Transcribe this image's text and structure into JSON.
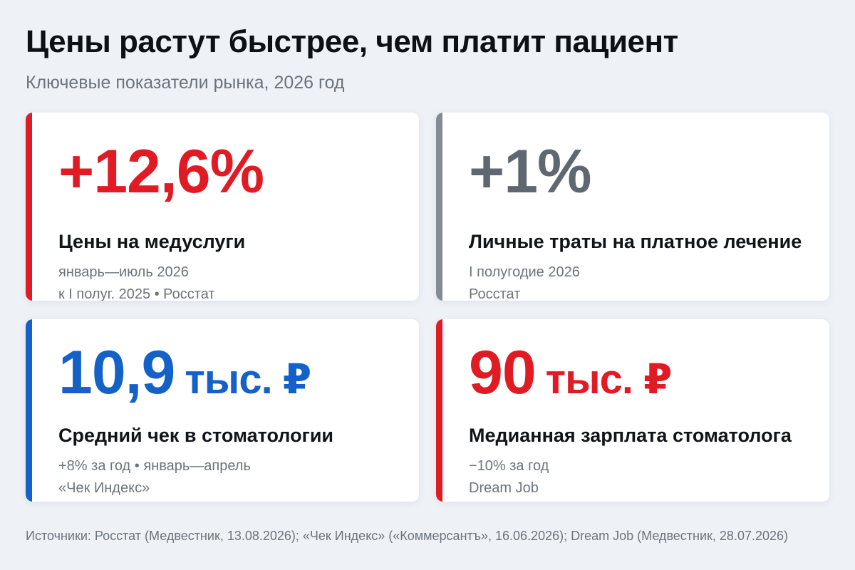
{
  "header": {
    "title": "Цены растут быстрее, чем платит пациент",
    "subtitle": "Ключевые показатели рынка, 2026 год"
  },
  "cards": [
    {
      "value": "+12,6%",
      "unit": "",
      "label": "Цены на медуслуги",
      "note_line1": "январь—июль 2026",
      "note_line2": "к I полуг. 2025 • Росстат",
      "accent_color": "#e01b24",
      "value_color": "#e01b24"
    },
    {
      "value": "+1%",
      "unit": "",
      "label": "Личные траты на платное лечение",
      "note_line1": "I полугодие 2026",
      "note_line2": "Росстат",
      "accent_color": "#848b94",
      "value_color": "#5f6770"
    },
    {
      "value": "10,9",
      "unit": "тыс. ₽",
      "label": "Средний чек в стоматологии",
      "note_line1": "+8% за год • январь—апрель",
      "note_line2": "«Чек Индекс»",
      "accent_color": "#1462c8",
      "value_color": "#1462c8"
    },
    {
      "value": "90",
      "unit": "тыс. ₽",
      "label": "Медианная зарплата стоматолога",
      "note_line1": "−10% за год",
      "note_line2": "Dream Job",
      "accent_color": "#e01b24",
      "value_color": "#e01b24"
    }
  ],
  "footer": {
    "sources": "Источники: Росстат (Медвестник, 13.08.2026); «Чек Индекс» («Коммерсантъ», 16.06.2026); Dream Job (Медвестник, 28.07.2026)"
  }
}
